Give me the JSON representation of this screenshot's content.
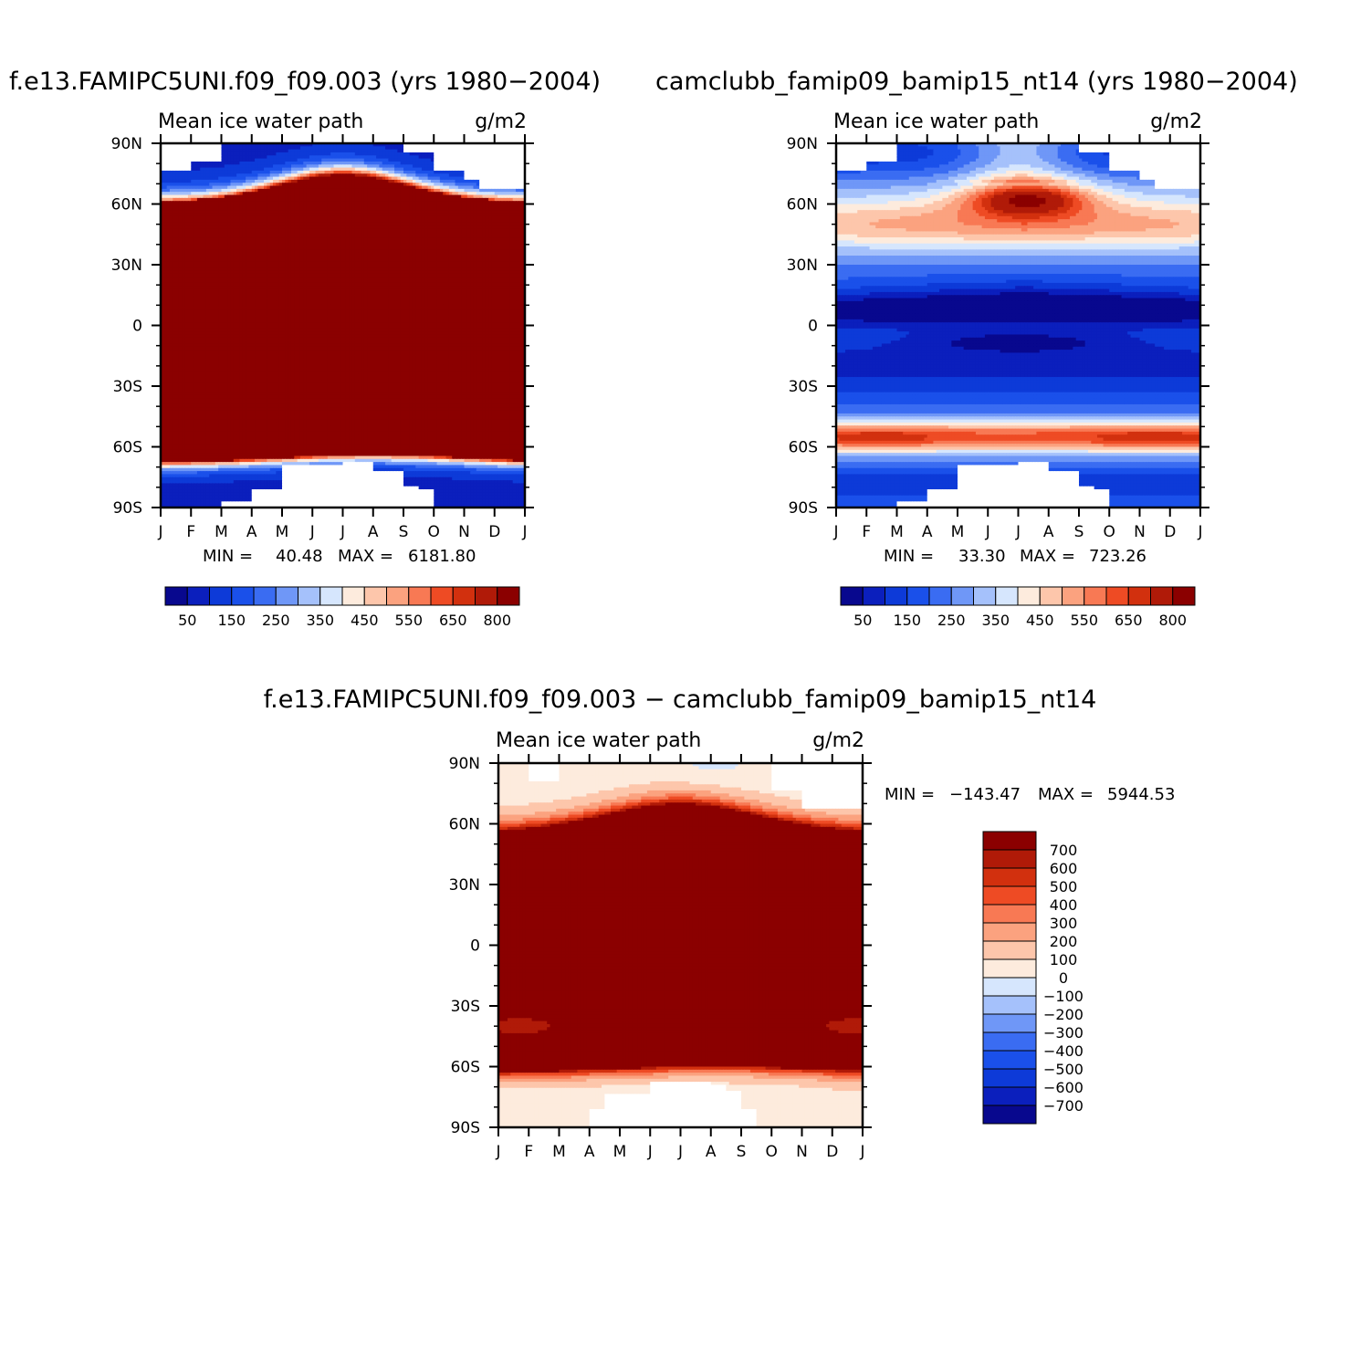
{
  "colors": {
    "cmap_abs": [
      "#08088e",
      "#0b1fbd",
      "#0d3ad8",
      "#1a50ea",
      "#3a6cf2",
      "#6f97f7",
      "#a5c1fb",
      "#d6e6fd",
      "#fdebdd",
      "#fdc6ab",
      "#fba27f",
      "#f87954",
      "#ee4b24",
      "#d2300e",
      "#b01a08",
      "#8b0000"
    ],
    "cmap_diff": [
      "#08088e",
      "#0b1fbd",
      "#0d3ad8",
      "#1a50ea",
      "#3a6cf2",
      "#6f97f7",
      "#a5c1fb",
      "#d6e6fd",
      "#fdebdd",
      "#fdc6ab",
      "#fba27f",
      "#f87954",
      "#ee4b24",
      "#d2300e",
      "#b01a08",
      "#8b0000"
    ],
    "missing": "#ffffff"
  },
  "panels": [
    {
      "title": "f.e13.FAMIPC5UNI.f09_f09.003 (yrs 1980−2004)",
      "left_label": "Mean ice water path",
      "right_label": "g/m2",
      "min_label": "MIN =",
      "min_value": "40.48",
      "max_label": "MAX =",
      "max_value": "6181.80",
      "colorbar_labels": [
        "50",
        "150",
        "250",
        "350",
        "450",
        "550",
        "650",
        "800"
      ]
    },
    {
      "title": "camclubb_famip09_bamip15_nt14 (yrs 1980−2004)",
      "left_label": "Mean ice water path",
      "right_label": "g/m2",
      "min_label": "MIN =",
      "min_value": "33.30",
      "max_label": "MAX =",
      "max_value": "723.26",
      "colorbar_labels": [
        "50",
        "150",
        "250",
        "350",
        "450",
        "550",
        "650",
        "800"
      ]
    },
    {
      "title": "f.e13.FAMIPC5UNI.f09_f09.003 − camclubb_famip09_bamip15_nt14",
      "left_label": "Mean ice water path",
      "right_label": "g/m2",
      "min_label": "MIN =",
      "min_value": "−143.47",
      "max_label": "MAX =",
      "max_value": "5944.53",
      "colorbar_labels": [
        "700",
        "600",
        "500",
        "400",
        "300",
        "200",
        "100",
        "0",
        "−100",
        "−200",
        "−300",
        "−400",
        "−500",
        "−600",
        "−700"
      ]
    }
  ],
  "chart_data": [
    {
      "type": "heatmap",
      "title": "f.e13.FAMIPC5UNI.f09_f09.003 (yrs 1980−2004)",
      "variable": "Mean ice water path",
      "units": "g/m2",
      "x_ticks": [
        "J",
        "F",
        "M",
        "A",
        "M",
        "J",
        "J",
        "A",
        "S",
        "O",
        "N",
        "D",
        "J"
      ],
      "y_ticks": [
        "90N",
        "60N",
        "30N",
        "0",
        "30S",
        "60S",
        "90S"
      ],
      "ylim": [
        -90,
        90
      ],
      "levels": [
        50,
        100,
        150,
        200,
        250,
        300,
        350,
        400,
        450,
        500,
        550,
        600,
        650,
        700,
        800
      ],
      "min": 40.48,
      "max": 6181.8
    },
    {
      "type": "heatmap",
      "title": "camclubb_famip09_bamip15_nt14 (yrs 1980−2004)",
      "variable": "Mean ice water path",
      "units": "g/m2",
      "x_ticks": [
        "J",
        "F",
        "M",
        "A",
        "M",
        "J",
        "J",
        "A",
        "S",
        "O",
        "N",
        "D",
        "J"
      ],
      "y_ticks": [
        "90N",
        "60N",
        "30N",
        "0",
        "30S",
        "60S",
        "90S"
      ],
      "ylim": [
        -90,
        90
      ],
      "levels": [
        50,
        100,
        150,
        200,
        250,
        300,
        350,
        400,
        450,
        500,
        550,
        600,
        650,
        700,
        800
      ],
      "min": 33.3,
      "max": 723.26
    },
    {
      "type": "heatmap",
      "title": "f.e13.FAMIPC5UNI.f09_f09.003 − camclubb_famip09_bamip15_nt14",
      "variable": "Mean ice water path",
      "units": "g/m2",
      "x_ticks": [
        "J",
        "F",
        "M",
        "A",
        "M",
        "J",
        "J",
        "A",
        "S",
        "O",
        "N",
        "D",
        "J"
      ],
      "y_ticks": [
        "90N",
        "60N",
        "30N",
        "0",
        "30S",
        "60S",
        "90S"
      ],
      "ylim": [
        -90,
        90
      ],
      "levels": [
        -700,
        -600,
        -500,
        -400,
        -300,
        -200,
        -100,
        0,
        100,
        200,
        300,
        400,
        500,
        600,
        700
      ],
      "min": -143.47,
      "max": 5944.53
    }
  ]
}
